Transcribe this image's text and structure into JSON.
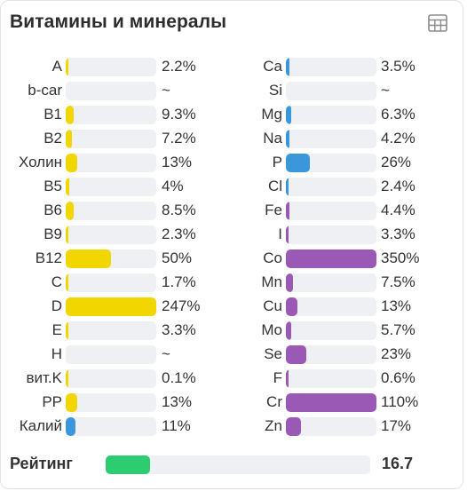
{
  "title": "Витамины и минералы",
  "icons": {
    "table": "table-grid-icon"
  },
  "colors": {
    "vitamin": "#f2d600",
    "potassium": "#3a97db",
    "mineral_blue": "#3a97db",
    "mineral_purple": "#9b59b6",
    "rating": "#2ecc71",
    "track": "#eef0f3"
  },
  "vitamins": [
    {
      "name": "A",
      "value": "2.2%",
      "level": 0.022,
      "color": "vitamin"
    },
    {
      "name": "b-car",
      "value": "~",
      "level": 0,
      "color": "vitamin"
    },
    {
      "name": "B1",
      "value": "9.3%",
      "level": 0.093,
      "color": "vitamin"
    },
    {
      "name": "B2",
      "value": "7.2%",
      "level": 0.072,
      "color": "vitamin"
    },
    {
      "name": "Холин",
      "value": "13%",
      "level": 0.13,
      "color": "vitamin"
    },
    {
      "name": "B5",
      "value": "4%",
      "level": 0.04,
      "color": "vitamin"
    },
    {
      "name": "B6",
      "value": "8.5%",
      "level": 0.085,
      "color": "vitamin"
    },
    {
      "name": "B9",
      "value": "2.3%",
      "level": 0.023,
      "color": "vitamin"
    },
    {
      "name": "B12",
      "value": "50%",
      "level": 0.5,
      "color": "vitamin"
    },
    {
      "name": "C",
      "value": "1.7%",
      "level": 0.017,
      "color": "vitamin"
    },
    {
      "name": "D",
      "value": "247%",
      "level": 1,
      "color": "vitamin"
    },
    {
      "name": "E",
      "value": "3.3%",
      "level": 0.033,
      "color": "vitamin"
    },
    {
      "name": "H",
      "value": "~",
      "level": 0,
      "color": "vitamin"
    },
    {
      "name": "вит.K",
      "value": "0.1%",
      "level": 0.001,
      "color": "vitamin"
    },
    {
      "name": "PP",
      "value": "13%",
      "level": 0.13,
      "color": "vitamin"
    },
    {
      "name": "Калий",
      "value": "11%",
      "level": 0.11,
      "color": "potassium"
    }
  ],
  "minerals": [
    {
      "name": "Ca",
      "value": "3.5%",
      "level": 0.035,
      "color": "mineral_blue"
    },
    {
      "name": "Si",
      "value": "~",
      "level": 0,
      "color": "mineral_blue"
    },
    {
      "name": "Mg",
      "value": "6.3%",
      "level": 0.063,
      "color": "mineral_blue"
    },
    {
      "name": "Na",
      "value": "4.2%",
      "level": 0.042,
      "color": "mineral_blue"
    },
    {
      "name": "P",
      "value": "26%",
      "level": 0.26,
      "color": "mineral_blue"
    },
    {
      "name": "Cl",
      "value": "2.4%",
      "level": 0.024,
      "color": "mineral_blue"
    },
    {
      "name": "Fe",
      "value": "4.4%",
      "level": 0.044,
      "color": "mineral_purple"
    },
    {
      "name": "I",
      "value": "3.3%",
      "level": 0.033,
      "color": "mineral_purple"
    },
    {
      "name": "Co",
      "value": "350%",
      "level": 1,
      "color": "mineral_purple"
    },
    {
      "name": "Mn",
      "value": "7.5%",
      "level": 0.075,
      "color": "mineral_purple"
    },
    {
      "name": "Cu",
      "value": "13%",
      "level": 0.13,
      "color": "mineral_purple"
    },
    {
      "name": "Mo",
      "value": "5.7%",
      "level": 0.057,
      "color": "mineral_purple"
    },
    {
      "name": "Se",
      "value": "23%",
      "level": 0.23,
      "color": "mineral_purple"
    },
    {
      "name": "F",
      "value": "0.6%",
      "level": 0.006,
      "color": "mineral_purple"
    },
    {
      "name": "Cr",
      "value": "110%",
      "level": 1,
      "color": "mineral_purple"
    },
    {
      "name": "Zn",
      "value": "17%",
      "level": 0.17,
      "color": "mineral_purple"
    }
  ],
  "rating": {
    "label": "Рейтинг",
    "value": "16.7",
    "level": 0.167
  }
}
